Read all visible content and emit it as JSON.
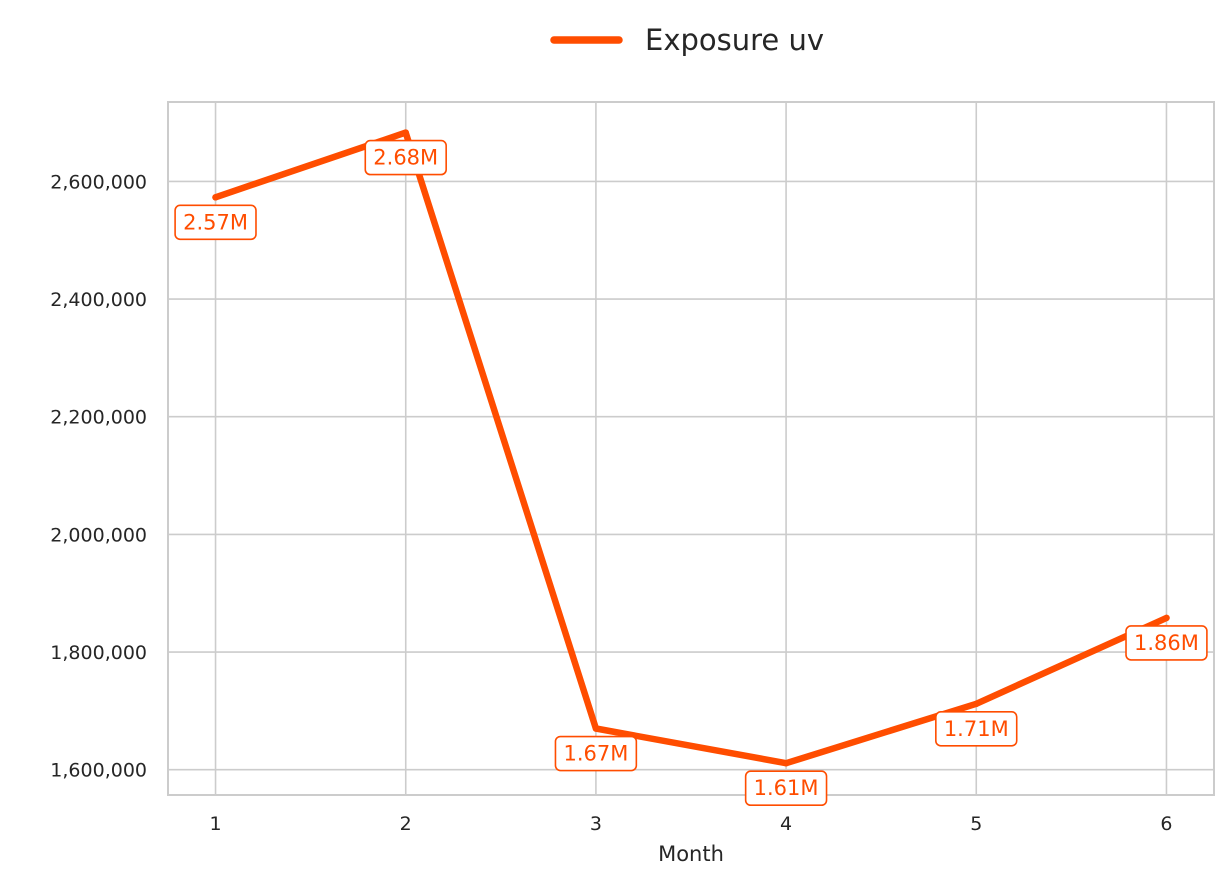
{
  "chart_data": {
    "type": "line",
    "title": "",
    "xlabel": "Month",
    "ylabel": "",
    "x": [
      1,
      2,
      3,
      4,
      5,
      6
    ],
    "x_tick_labels": [
      "1",
      "2",
      "3",
      "4",
      "5",
      "6"
    ],
    "y_tick_labels": [
      "1,600,000",
      "1,800,000",
      "2,000,000",
      "2,200,000",
      "2,400,000",
      "2,600,000"
    ],
    "y_ticks": [
      1600000,
      1800000,
      2000000,
      2200000,
      2400000,
      2600000
    ],
    "xlim": [
      0.75,
      6.25
    ],
    "ylim": [
      1557000,
      2735000
    ],
    "grid": true,
    "legend_position": "top-center",
    "series": [
      {
        "name": "Exposure uv",
        "color": "#ff4d00",
        "values": [
          2573000,
          2683000,
          1670000,
          1611000,
          1712000,
          1858000
        ],
        "data_labels": [
          "2.57M",
          "2.68M",
          "1.67M",
          "1.61M",
          "1.71M",
          "1.86M"
        ]
      }
    ]
  }
}
